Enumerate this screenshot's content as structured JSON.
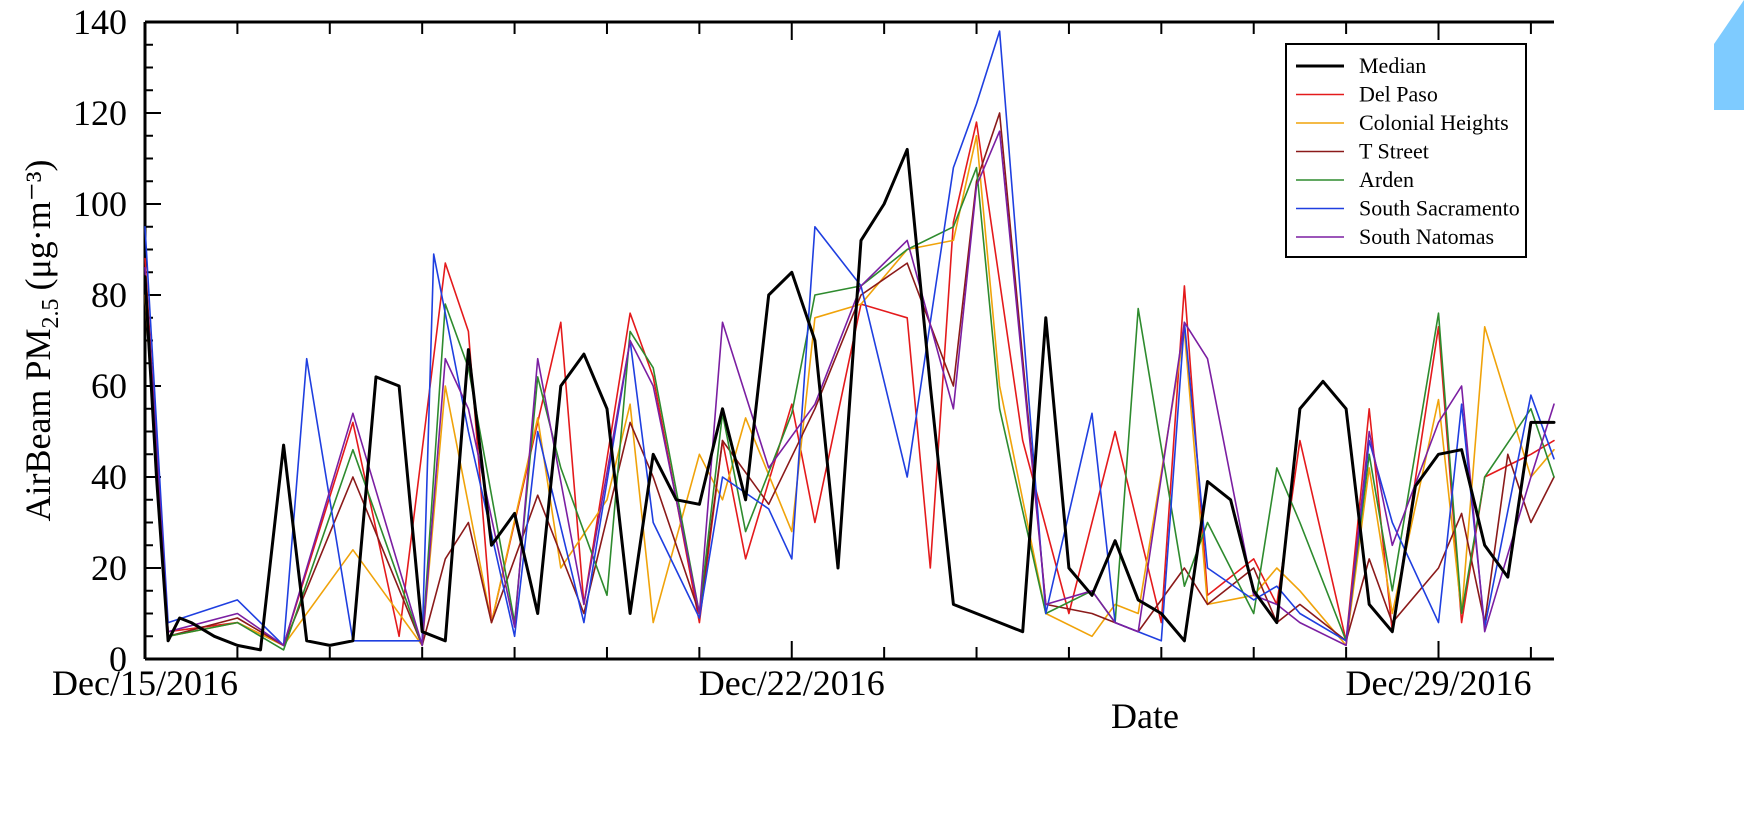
{
  "chart_data": {
    "type": "line",
    "xlabel": "Date",
    "ylabel": "AirBeam PM",
    "ylabel_sub": "2.5",
    "ylabel_units": "(μg·m⁻³)",
    "ylim": [
      0,
      140
    ],
    "y_ticks": [
      0,
      20,
      40,
      60,
      80,
      100,
      120,
      140
    ],
    "xlim": [
      "2016-12-15",
      "2016-12-30T06:00"
    ],
    "x_tick_labels": [
      "Dec/15/2016",
      "Dec/22/2016",
      "Dec/29/2016"
    ],
    "legend": {
      "position": "top-right",
      "entries": [
        "Median",
        "Del Paso",
        "Colonial Heights",
        "T Street",
        "Arden",
        "South Sacramento",
        "South Natomas"
      ]
    },
    "grid": false,
    "series": [
      {
        "name": "Median",
        "color": "#000000",
        "x": [
          "2016-12-15T00:00",
          "2016-12-15T03:00",
          "2016-12-15T06:00",
          "2016-12-15T09:00",
          "2016-12-15T12:00",
          "2016-12-15T18:00",
          "2016-12-16T00:00",
          "2016-12-16T06:00",
          "2016-12-16T12:00",
          "2016-12-16T18:00",
          "2016-12-17T00:00",
          "2016-12-17T06:00",
          "2016-12-17T12:00",
          "2016-12-17T18:00",
          "2016-12-18T00:00",
          "2016-12-18T06:00",
          "2016-12-18T12:00",
          "2016-12-18T18:00",
          "2016-12-19T00:00",
          "2016-12-19T06:00",
          "2016-12-19T12:00",
          "2016-12-19T18:00",
          "2016-12-20T00:00",
          "2016-12-20T06:00",
          "2016-12-20T12:00",
          "2016-12-20T18:00",
          "2016-12-21T00:00",
          "2016-12-21T06:00",
          "2016-12-21T12:00",
          "2016-12-21T18:00",
          "2016-12-22T00:00",
          "2016-12-22T06:00",
          "2016-12-22T12:00",
          "2016-12-22T18:00",
          "2016-12-23T00:00",
          "2016-12-23T06:00",
          "2016-12-23T12:00",
          "2016-12-23T18:00",
          "2016-12-24T00:00",
          "2016-12-24T06:00",
          "2016-12-24T12:00",
          "2016-12-24T18:00",
          "2016-12-25T00:00",
          "2016-12-25T06:00",
          "2016-12-25T12:00",
          "2016-12-25T18:00",
          "2016-12-26T00:00",
          "2016-12-26T06:00",
          "2016-12-26T12:00",
          "2016-12-26T18:00",
          "2016-12-27T00:00",
          "2016-12-27T06:00",
          "2016-12-27T12:00",
          "2016-12-27T18:00",
          "2016-12-28T00:00",
          "2016-12-28T06:00",
          "2016-12-28T12:00",
          "2016-12-28T18:00",
          "2016-12-29T00:00",
          "2016-12-29T06:00",
          "2016-12-29T12:00",
          "2016-12-29T18:00",
          "2016-12-30T00:00",
          "2016-12-30T06:00"
        ],
        "y": [
          84,
          40,
          4,
          9,
          8,
          5,
          3,
          2,
          47,
          4,
          3,
          4,
          62,
          60,
          6,
          4,
          68,
          25,
          32,
          10,
          60,
          67,
          55,
          10,
          45,
          35,
          34,
          55,
          35,
          80,
          85,
          70,
          20,
          92,
          100,
          112,
          60,
          12,
          10,
          8,
          6,
          75,
          20,
          14,
          26,
          13,
          10,
          4,
          39,
          35,
          15,
          8,
          55,
          61,
          55,
          12,
          6,
          38,
          45,
          46,
          25,
          18,
          52,
          52
        ]
      },
      {
        "name": "Del Paso",
        "color": "#e41a1c",
        "x": [
          "2016-12-15T00:00",
          "2016-12-15T06:00",
          "2016-12-16T00:00",
          "2016-12-16T12:00",
          "2016-12-17T06:00",
          "2016-12-17T18:00",
          "2016-12-18T06:00",
          "2016-12-18T12:00",
          "2016-12-18T18:00",
          "2016-12-19T12:00",
          "2016-12-19T18:00",
          "2016-12-20T06:00",
          "2016-12-20T12:00",
          "2016-12-21T00:00",
          "2016-12-21T06:00",
          "2016-12-21T12:00",
          "2016-12-22T00:00",
          "2016-12-22T06:00",
          "2016-12-22T18:00",
          "2016-12-23T06:00",
          "2016-12-23T12:00",
          "2016-12-23T18:00",
          "2016-12-24T00:00",
          "2016-12-24T12:00",
          "2016-12-25T00:00",
          "2016-12-25T12:00",
          "2016-12-26T00:00",
          "2016-12-26T06:00",
          "2016-12-26T12:00",
          "2016-12-27T00:00",
          "2016-12-27T06:00",
          "2016-12-27T12:00",
          "2016-12-28T00:00",
          "2016-12-28T06:00",
          "2016-12-28T12:00",
          "2016-12-29T00:00",
          "2016-12-29T06:00",
          "2016-12-29T12:00",
          "2016-12-30T00:00",
          "2016-12-30T06:00"
        ],
        "y": [
          88,
          6,
          8,
          3,
          52,
          5,
          87,
          72,
          8,
          74,
          12,
          76,
          62,
          8,
          48,
          22,
          56,
          30,
          78,
          75,
          20,
          96,
          118,
          48,
          10,
          50,
          8,
          82,
          14,
          22,
          12,
          48,
          4,
          55,
          6,
          73,
          8,
          40,
          45,
          48
        ]
      },
      {
        "name": "Colonial Heights",
        "color": "#f0a30a",
        "x": [
          "2016-12-15T00:00",
          "2016-12-15T06:00",
          "2016-12-16T00:00",
          "2016-12-16T12:00",
          "2016-12-17T06:00",
          "2016-12-18T00:00",
          "2016-12-18T06:00",
          "2016-12-18T18:00",
          "2016-12-19T06:00",
          "2016-12-19T12:00",
          "2016-12-20T00:00",
          "2016-12-20T06:00",
          "2016-12-20T12:00",
          "2016-12-21T00:00",
          "2016-12-21T06:00",
          "2016-12-21T12:00",
          "2016-12-22T00:00",
          "2016-12-22T06:00",
          "2016-12-22T18:00",
          "2016-12-23T06:00",
          "2016-12-23T18:00",
          "2016-12-24T00:00",
          "2016-12-24T06:00",
          "2016-12-24T18:00",
          "2016-12-25T06:00",
          "2016-12-25T12:00",
          "2016-12-25T18:00",
          "2016-12-26T06:00",
          "2016-12-26T12:00",
          "2016-12-27T00:00",
          "2016-12-27T06:00",
          "2016-12-27T12:00",
          "2016-12-28T00:00",
          "2016-12-28T06:00",
          "2016-12-28T12:00",
          "2016-12-29T00:00",
          "2016-12-29T06:00",
          "2016-12-29T12:00",
          "2016-12-30T00:00",
          "2016-12-30T06:00"
        ],
        "y": [
          80,
          5,
          8,
          3,
          24,
          3,
          60,
          8,
          53,
          20,
          35,
          56,
          8,
          45,
          35,
          53,
          28,
          75,
          78,
          90,
          92,
          115,
          60,
          10,
          5,
          12,
          10,
          72,
          12,
          14,
          20,
          15,
          3,
          42,
          10,
          57,
          10,
          73,
          40,
          46
        ]
      },
      {
        "name": "T Street",
        "color": "#8b1a1a",
        "x": [
          "2016-12-15T00:00",
          "2016-12-15T06:00",
          "2016-12-16T00:00",
          "2016-12-16T12:00",
          "2016-12-17T06:00",
          "2016-12-18T00:00",
          "2016-12-18T06:00",
          "2016-12-18T12:00",
          "2016-12-18T18:00",
          "2016-12-19T06:00",
          "2016-12-19T18:00",
          "2016-12-20T06:00",
          "2016-12-20T12:00",
          "2016-12-21T00:00",
          "2016-12-21T06:00",
          "2016-12-21T18:00",
          "2016-12-22T06:00",
          "2016-12-22T18:00",
          "2016-12-23T06:00",
          "2016-12-23T18:00",
          "2016-12-24T00:00",
          "2016-12-24T06:00",
          "2016-12-24T18:00",
          "2016-12-25T06:00",
          "2016-12-25T12:00",
          "2016-12-25T18:00",
          "2016-12-26T06:00",
          "2016-12-26T12:00",
          "2016-12-27T00:00",
          "2016-12-27T06:00",
          "2016-12-27T12:00",
          "2016-12-28T00:00",
          "2016-12-28T06:00",
          "2016-12-28T12:00",
          "2016-12-29T00:00",
          "2016-12-29T06:00",
          "2016-12-29T12:00",
          "2016-12-29T18:00",
          "2016-12-30T00:00",
          "2016-12-30T06:00"
        ],
        "y": [
          82,
          5,
          9,
          3,
          40,
          3,
          22,
          30,
          8,
          36,
          10,
          52,
          40,
          10,
          48,
          34,
          55,
          80,
          87,
          60,
          105,
          120,
          12,
          10,
          8,
          6,
          20,
          12,
          20,
          8,
          12,
          4,
          22,
          8,
          20,
          32,
          8,
          45,
          30,
          40
        ]
      },
      {
        "name": "Arden",
        "color": "#2e8b2e",
        "x": [
          "2016-12-15T00:00",
          "2016-12-15T06:00",
          "2016-12-16T00:00",
          "2016-12-16T12:00",
          "2016-12-17T06:00",
          "2016-12-18T00:00",
          "2016-12-18T06:00",
          "2016-12-18T12:00",
          "2016-12-19T00:00",
          "2016-12-19T06:00",
          "2016-12-19T12:00",
          "2016-12-20T00:00",
          "2016-12-20T06:00",
          "2016-12-20T12:00",
          "2016-12-21T00:00",
          "2016-12-21T06:00",
          "2016-12-21T12:00",
          "2016-12-22T00:00",
          "2016-12-22T06:00",
          "2016-12-22T18:00",
          "2016-12-23T06:00",
          "2016-12-23T18:00",
          "2016-12-24T00:00",
          "2016-12-24T06:00",
          "2016-12-24T18:00",
          "2016-12-25T06:00",
          "2016-12-25T12:00",
          "2016-12-25T18:00",
          "2016-12-26T06:00",
          "2016-12-26T12:00",
          "2016-12-27T00:00",
          "2016-12-27T06:00",
          "2016-12-27T12:00",
          "2016-12-28T00:00",
          "2016-12-28T06:00",
          "2016-12-28T12:00",
          "2016-12-29T00:00",
          "2016-12-29T06:00",
          "2016-12-29T12:00",
          "2016-12-30T00:00",
          "2016-12-30T06:00"
        ],
        "y": [
          84,
          5,
          8,
          2,
          46,
          3,
          78,
          64,
          8,
          62,
          42,
          14,
          72,
          64,
          10,
          54,
          28,
          54,
          80,
          82,
          90,
          95,
          108,
          55,
          10,
          15,
          8,
          77,
          16,
          30,
          10,
          42,
          30,
          4,
          45,
          15,
          76,
          10,
          40,
          55,
          40
        ]
      },
      {
        "name": "South Sacramento",
        "color": "#1f3fe0",
        "x": [
          "2016-12-15T00:00",
          "2016-12-15T06:00",
          "2016-12-16T00:00",
          "2016-12-16T12:00",
          "2016-12-16T18:00",
          "2016-12-17T06:00",
          "2016-12-18T00:00",
          "2016-12-18T03:00",
          "2016-12-18T12:00",
          "2016-12-19T00:00",
          "2016-12-19T06:00",
          "2016-12-19T18:00",
          "2016-12-20T06:00",
          "2016-12-20T12:00",
          "2016-12-21T00:00",
          "2016-12-21T06:00",
          "2016-12-21T18:00",
          "2016-12-22T00:00",
          "2016-12-22T06:00",
          "2016-12-22T18:00",
          "2016-12-23T06:00",
          "2016-12-23T18:00",
          "2016-12-24T00:00",
          "2016-12-24T06:00",
          "2016-12-24T18:00",
          "2016-12-25T06:00",
          "2016-12-25T12:00",
          "2016-12-26T00:00",
          "2016-12-26T06:00",
          "2016-12-26T12:00",
          "2016-12-27T00:00",
          "2016-12-27T06:00",
          "2016-12-27T12:00",
          "2016-12-28T00:00",
          "2016-12-28T06:00",
          "2016-12-28T12:00",
          "2016-12-29T00:00",
          "2016-12-29T06:00",
          "2016-12-29T12:00",
          "2016-12-30T00:00",
          "2016-12-30T06:00"
        ],
        "y": [
          95,
          8,
          13,
          3,
          66,
          4,
          4,
          89,
          50,
          5,
          50,
          8,
          70,
          30,
          9,
          40,
          33,
          22,
          95,
          82,
          40,
          108,
          122,
          138,
          10,
          54,
          8,
          4,
          74,
          20,
          13,
          16,
          10,
          4,
          48,
          30,
          8,
          56,
          7,
          58,
          44
        ]
      },
      {
        "name": "South Natomas",
        "color": "#7b1fa2",
        "x": [
          "2016-12-15T00:00",
          "2016-12-15T06:00",
          "2016-12-16T00:00",
          "2016-12-16T12:00",
          "2016-12-17T06:00",
          "2016-12-18T00:00",
          "2016-12-18T06:00",
          "2016-12-18T12:00",
          "2016-12-19T00:00",
          "2016-12-19T06:00",
          "2016-12-19T18:00",
          "2016-12-20T06:00",
          "2016-12-20T12:00",
          "2016-12-21T00:00",
          "2016-12-21T06:00",
          "2016-12-21T18:00",
          "2016-12-22T06:00",
          "2016-12-22T18:00",
          "2016-12-23T06:00",
          "2016-12-23T18:00",
          "2016-12-24T00:00",
          "2016-12-24T06:00",
          "2016-12-24T18:00",
          "2016-12-25T06:00",
          "2016-12-25T12:00",
          "2016-12-25T18:00",
          "2016-12-26T06:00",
          "2016-12-26T12:00",
          "2016-12-27T00:00",
          "2016-12-27T06:00",
          "2016-12-27T12:00",
          "2016-12-28T00:00",
          "2016-12-28T06:00",
          "2016-12-28T12:00",
          "2016-12-29T00:00",
          "2016-12-29T06:00",
          "2016-12-29T12:00",
          "2016-12-30T00:00",
          "2016-12-30T06:00"
        ],
        "y": [
          86,
          6,
          10,
          3,
          54,
          3,
          66,
          55,
          7,
          66,
          12,
          70,
          60,
          10,
          74,
          42,
          56,
          82,
          92,
          55,
          104,
          116,
          12,
          15,
          8,
          6,
          74,
          66,
          14,
          12,
          8,
          3,
          50,
          25,
          52,
          60,
          6,
          40,
          56
        ]
      }
    ]
  }
}
